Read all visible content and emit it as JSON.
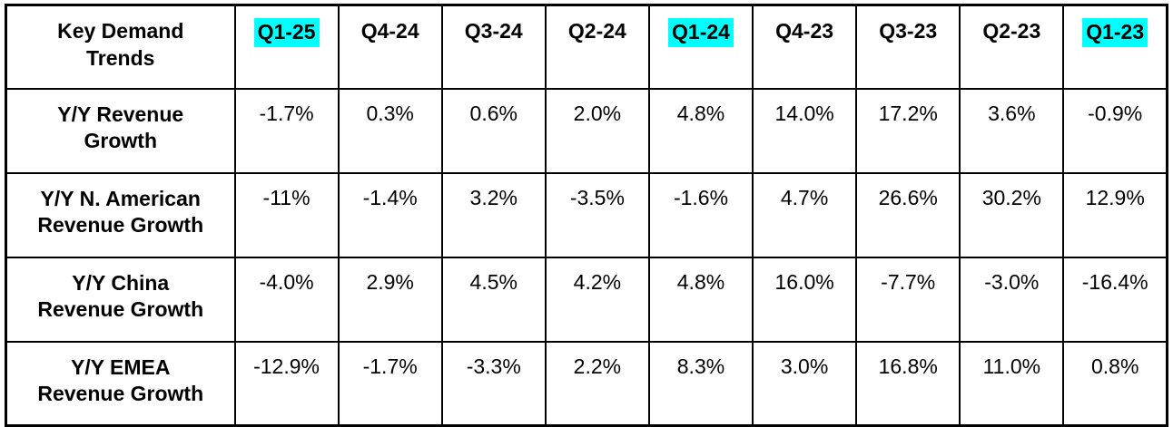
{
  "table": {
    "corner_label": "Key Demand\nTrends",
    "quarters": [
      {
        "label": "Q1-25",
        "highlighted": true
      },
      {
        "label": "Q4-24",
        "highlighted": false
      },
      {
        "label": "Q3-24",
        "highlighted": false
      },
      {
        "label": "Q2-24",
        "highlighted": false
      },
      {
        "label": "Q1-24",
        "highlighted": true
      },
      {
        "label": "Q4-23",
        "highlighted": false
      },
      {
        "label": "Q3-23",
        "highlighted": false
      },
      {
        "label": "Q2-23",
        "highlighted": false
      },
      {
        "label": "Q1-23",
        "highlighted": true
      }
    ],
    "rows": [
      {
        "label": "Y/Y Revenue\nGrowth",
        "values": [
          "-1.7%",
          "0.3%",
          "0.6%",
          "2.0%",
          "4.8%",
          "14.0%",
          "17.2%",
          "3.6%",
          "-0.9%"
        ]
      },
      {
        "label": "Y/Y N. American\nRevenue Growth",
        "values": [
          "-11%",
          "-1.4%",
          "3.2%",
          "-3.5%",
          "-1.6%",
          "4.7%",
          "26.6%",
          "30.2%",
          "12.9%"
        ]
      },
      {
        "label": "Y/Y China\nRevenue Growth",
        "values": [
          "-4.0%",
          "2.9%",
          "4.5%",
          "4.2%",
          "4.8%",
          "16.0%",
          "-7.7%",
          "-3.0%",
          "-16.4%"
        ]
      },
      {
        "label": "Y/Y EMEA\nRevenue Growth",
        "values": [
          "-12.9%",
          "-1.7%",
          "-3.3%",
          "2.2%",
          "8.3%",
          "3.0%",
          "16.8%",
          "11.0%",
          "0.8%"
        ]
      }
    ],
    "colors": {
      "highlight": "#00FFFF",
      "border": "#000000",
      "text": "#000000",
      "background": "#FFFFFF"
    }
  },
  "chart_data": {
    "type": "table",
    "title": "Key Demand Trends",
    "columns": [
      "Q1-25",
      "Q4-24",
      "Q3-24",
      "Q2-24",
      "Q1-24",
      "Q4-23",
      "Q3-23",
      "Q2-23",
      "Q1-23"
    ],
    "highlighted_columns": [
      "Q1-25",
      "Q1-24",
      "Q1-23"
    ],
    "rows": [
      {
        "label": "Y/Y Revenue Growth",
        "values": [
          -1.7,
          0.3,
          0.6,
          2.0,
          4.8,
          14.0,
          17.2,
          3.6,
          -0.9
        ]
      },
      {
        "label": "Y/Y N. American Revenue Growth",
        "values": [
          -11,
          -1.4,
          3.2,
          -3.5,
          -1.6,
          4.7,
          26.6,
          30.2,
          12.9
        ]
      },
      {
        "label": "Y/Y China Revenue Growth",
        "values": [
          -4.0,
          2.9,
          4.5,
          4.2,
          4.8,
          16.0,
          -7.7,
          -3.0,
          -16.4
        ]
      },
      {
        "label": "Y/Y EMEA Revenue Growth",
        "values": [
          -12.9,
          -1.7,
          -3.3,
          2.2,
          8.3,
          3.0,
          16.8,
          11.0,
          0.8
        ]
      }
    ],
    "units": "percent (Y/Y growth)"
  }
}
